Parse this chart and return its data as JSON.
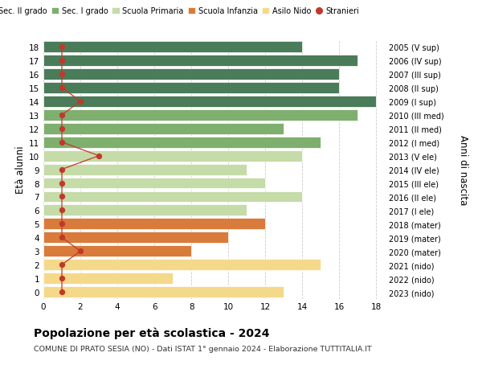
{
  "ages": [
    18,
    17,
    16,
    15,
    14,
    13,
    12,
    11,
    10,
    9,
    8,
    7,
    6,
    5,
    4,
    3,
    2,
    1,
    0
  ],
  "right_labels": [
    "2005 (V sup)",
    "2006 (IV sup)",
    "2007 (III sup)",
    "2008 (II sup)",
    "2009 (I sup)",
    "2010 (III med)",
    "2011 (II med)",
    "2012 (I med)",
    "2013 (V ele)",
    "2014 (IV ele)",
    "2015 (III ele)",
    "2016 (II ele)",
    "2017 (I ele)",
    "2018 (mater)",
    "2019 (mater)",
    "2020 (mater)",
    "2021 (nido)",
    "2022 (nido)",
    "2023 (nido)"
  ],
  "bar_values": [
    14,
    17,
    16,
    16,
    18,
    17,
    13,
    15,
    14,
    11,
    12,
    14,
    11,
    12,
    10,
    8,
    15,
    7,
    13
  ],
  "bar_colors": [
    "#4a7c59",
    "#4a7c59",
    "#4a7c59",
    "#4a7c59",
    "#4a7c59",
    "#7faf6e",
    "#7faf6e",
    "#7faf6e",
    "#c5dba8",
    "#c5dba8",
    "#c5dba8",
    "#c5dba8",
    "#c5dba8",
    "#d97b3a",
    "#d97b3a",
    "#d97b3a",
    "#f5d98a",
    "#f5d98a",
    "#f5d98a"
  ],
  "stranieri_values": [
    1,
    1,
    1,
    1,
    2,
    1,
    1,
    1,
    3,
    1,
    1,
    1,
    1,
    1,
    1,
    2,
    1,
    1,
    1
  ],
  "legend_labels": [
    "Sec. II grado",
    "Sec. I grado",
    "Scuola Primaria",
    "Scuola Infanzia",
    "Asilo Nido",
    "Stranieri"
  ],
  "legend_colors": [
    "#4a7c59",
    "#7faf6e",
    "#c5dba8",
    "#d97b3a",
    "#f5d98a",
    "#c0392b"
  ],
  "ylabel_left": "Età alunni",
  "ylabel_right": "Anni di nascita",
  "title": "Popolazione per età scolastica - 2024",
  "subtitle": "COMUNE DI PRATO SESIA (NO) - Dati ISTAT 1° gennaio 2024 - Elaborazione TUTTITALIA.IT",
  "background_color": "#ffffff",
  "grid_color": "#cccccc",
  "stranieri_color": "#c0392b"
}
